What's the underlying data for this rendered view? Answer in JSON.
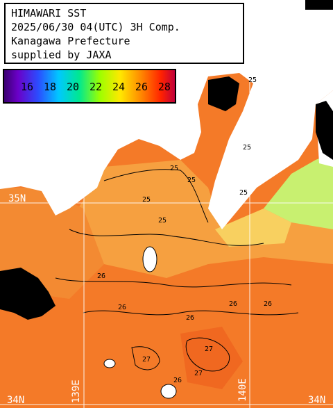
{
  "title": {
    "line1": "HIMAWARI SST",
    "line2": "2025/06/30 04(UTC) 3H Comp.",
    "line3": "Kanagawa Prefecture",
    "line4": "supplied by JAXA"
  },
  "colorbar": {
    "labels": [
      "16",
      "18",
      "20",
      "22",
      "24",
      "26",
      "28"
    ],
    "colors": [
      "#3a0070",
      "#6a00c8",
      "#2b4dff",
      "#00c8ff",
      "#00e890",
      "#9cff00",
      "#ffe800",
      "#ff8a00",
      "#ff2200",
      "#c0003a"
    ]
  },
  "grid": {
    "lat_labels": [
      "35N",
      "34N",
      "34N"
    ],
    "lon_labels": [
      "139E",
      "140E"
    ]
  },
  "contour_labels": [
    "25",
    "25",
    "25",
    "25",
    "25",
    "25",
    "26",
    "26",
    "26",
    "26",
    "26",
    "27",
    "27",
    "26",
    "25",
    "27"
  ],
  "colors": {
    "land": "#ffffff",
    "cloud": "#000000",
    "sea_warm": "#f47a28",
    "sea_mid": "#f6a040",
    "sea_cool": "#f8c060",
    "sea_green": "#c8f070",
    "grid": "#ffffff"
  }
}
